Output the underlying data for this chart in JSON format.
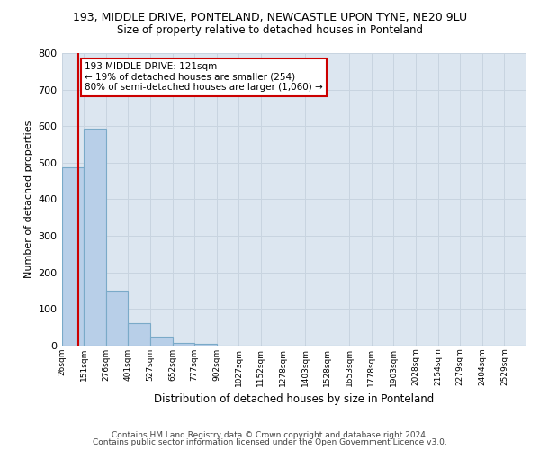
{
  "title1": "193, MIDDLE DRIVE, PONTELAND, NEWCASTLE UPON TYNE, NE20 9LU",
  "title2": "Size of property relative to detached houses in Ponteland",
  "xlabel": "Distribution of detached houses by size in Ponteland",
  "ylabel": "Number of detached properties",
  "footer1": "Contains HM Land Registry data © Crown copyright and database right 2024.",
  "footer2": "Contains public sector information licensed under the Open Government Licence v3.0.",
  "bar_labels": [
    "26sqm",
    "151sqm",
    "276sqm",
    "401sqm",
    "527sqm",
    "652sqm",
    "777sqm",
    "902sqm",
    "1027sqm",
    "1152sqm",
    "1278sqm",
    "1403sqm",
    "1528sqm",
    "1653sqm",
    "1778sqm",
    "1903sqm",
    "2028sqm",
    "2154sqm",
    "2279sqm",
    "2404sqm",
    "2529sqm"
  ],
  "bar_values": [
    487,
    592,
    150,
    62,
    25,
    8,
    5,
    0,
    0,
    0,
    0,
    0,
    0,
    0,
    0,
    0,
    0,
    0,
    0,
    0,
    0
  ],
  "bar_color": "#b8cfe8",
  "bar_edge_color": "#7aaac8",
  "property_bin": 0.77,
  "property_line_color": "#cc0000",
  "annotation_text": "193 MIDDLE DRIVE: 121sqm\n← 19% of detached houses are smaller (254)\n80% of semi-detached houses are larger (1,060) →",
  "annotation_box_color": "#ffffff",
  "annotation_box_edge": "#cc0000",
  "ylim": [
    0,
    800
  ],
  "yticks": [
    0,
    100,
    200,
    300,
    400,
    500,
    600,
    700,
    800
  ],
  "grid_color": "#c8d4e0",
  "background_color": "#dce6f0",
  "title1_fontsize": 9,
  "title2_fontsize": 8.5,
  "ylabel_fontsize": 8,
  "xlabel_fontsize": 8.5
}
